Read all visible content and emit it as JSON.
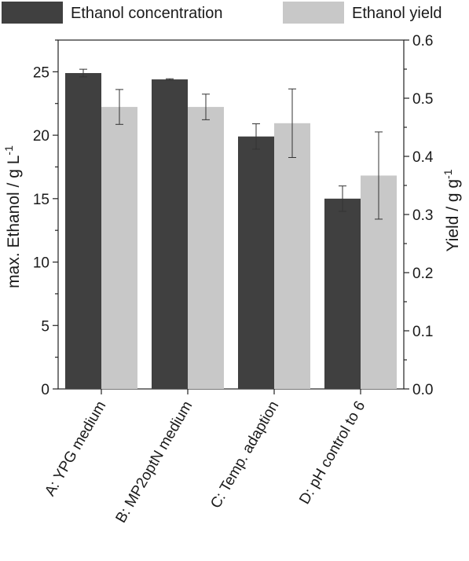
{
  "chart_data": {
    "type": "bar",
    "categories": [
      "A: YPG medium",
      "B: MP2optN medium",
      "C: Temp. adaption",
      "D: pH control to 6"
    ],
    "series": [
      {
        "name": "Ethanol concentration",
        "axis": "left",
        "color": "#404040",
        "values": [
          24.9,
          24.4,
          19.9,
          15.0
        ],
        "errors": [
          0.3,
          0.05,
          1.0,
          1.0
        ]
      },
      {
        "name": "Ethanol yield",
        "axis": "right",
        "color": "#c8c8c8",
        "values": [
          0.485,
          0.485,
          0.457,
          0.367
        ],
        "errors": [
          0.03,
          0.022,
          0.059,
          0.075
        ]
      }
    ],
    "ylabel": "max. Ethanol / g L",
    "ylabel_superscript": "-1",
    "y2label": "Yield / g g",
    "y2label_superscript": "-1",
    "ylim": [
      0,
      27.5
    ],
    "y2lim": [
      0,
      0.6
    ],
    "yticks": [
      0,
      5,
      10,
      15,
      20,
      25
    ],
    "y2ticks": [
      "0.0",
      "0.1",
      "0.2",
      "0.3",
      "0.4",
      "0.5",
      "0.6"
    ],
    "legend_position": "top",
    "grid": false
  }
}
